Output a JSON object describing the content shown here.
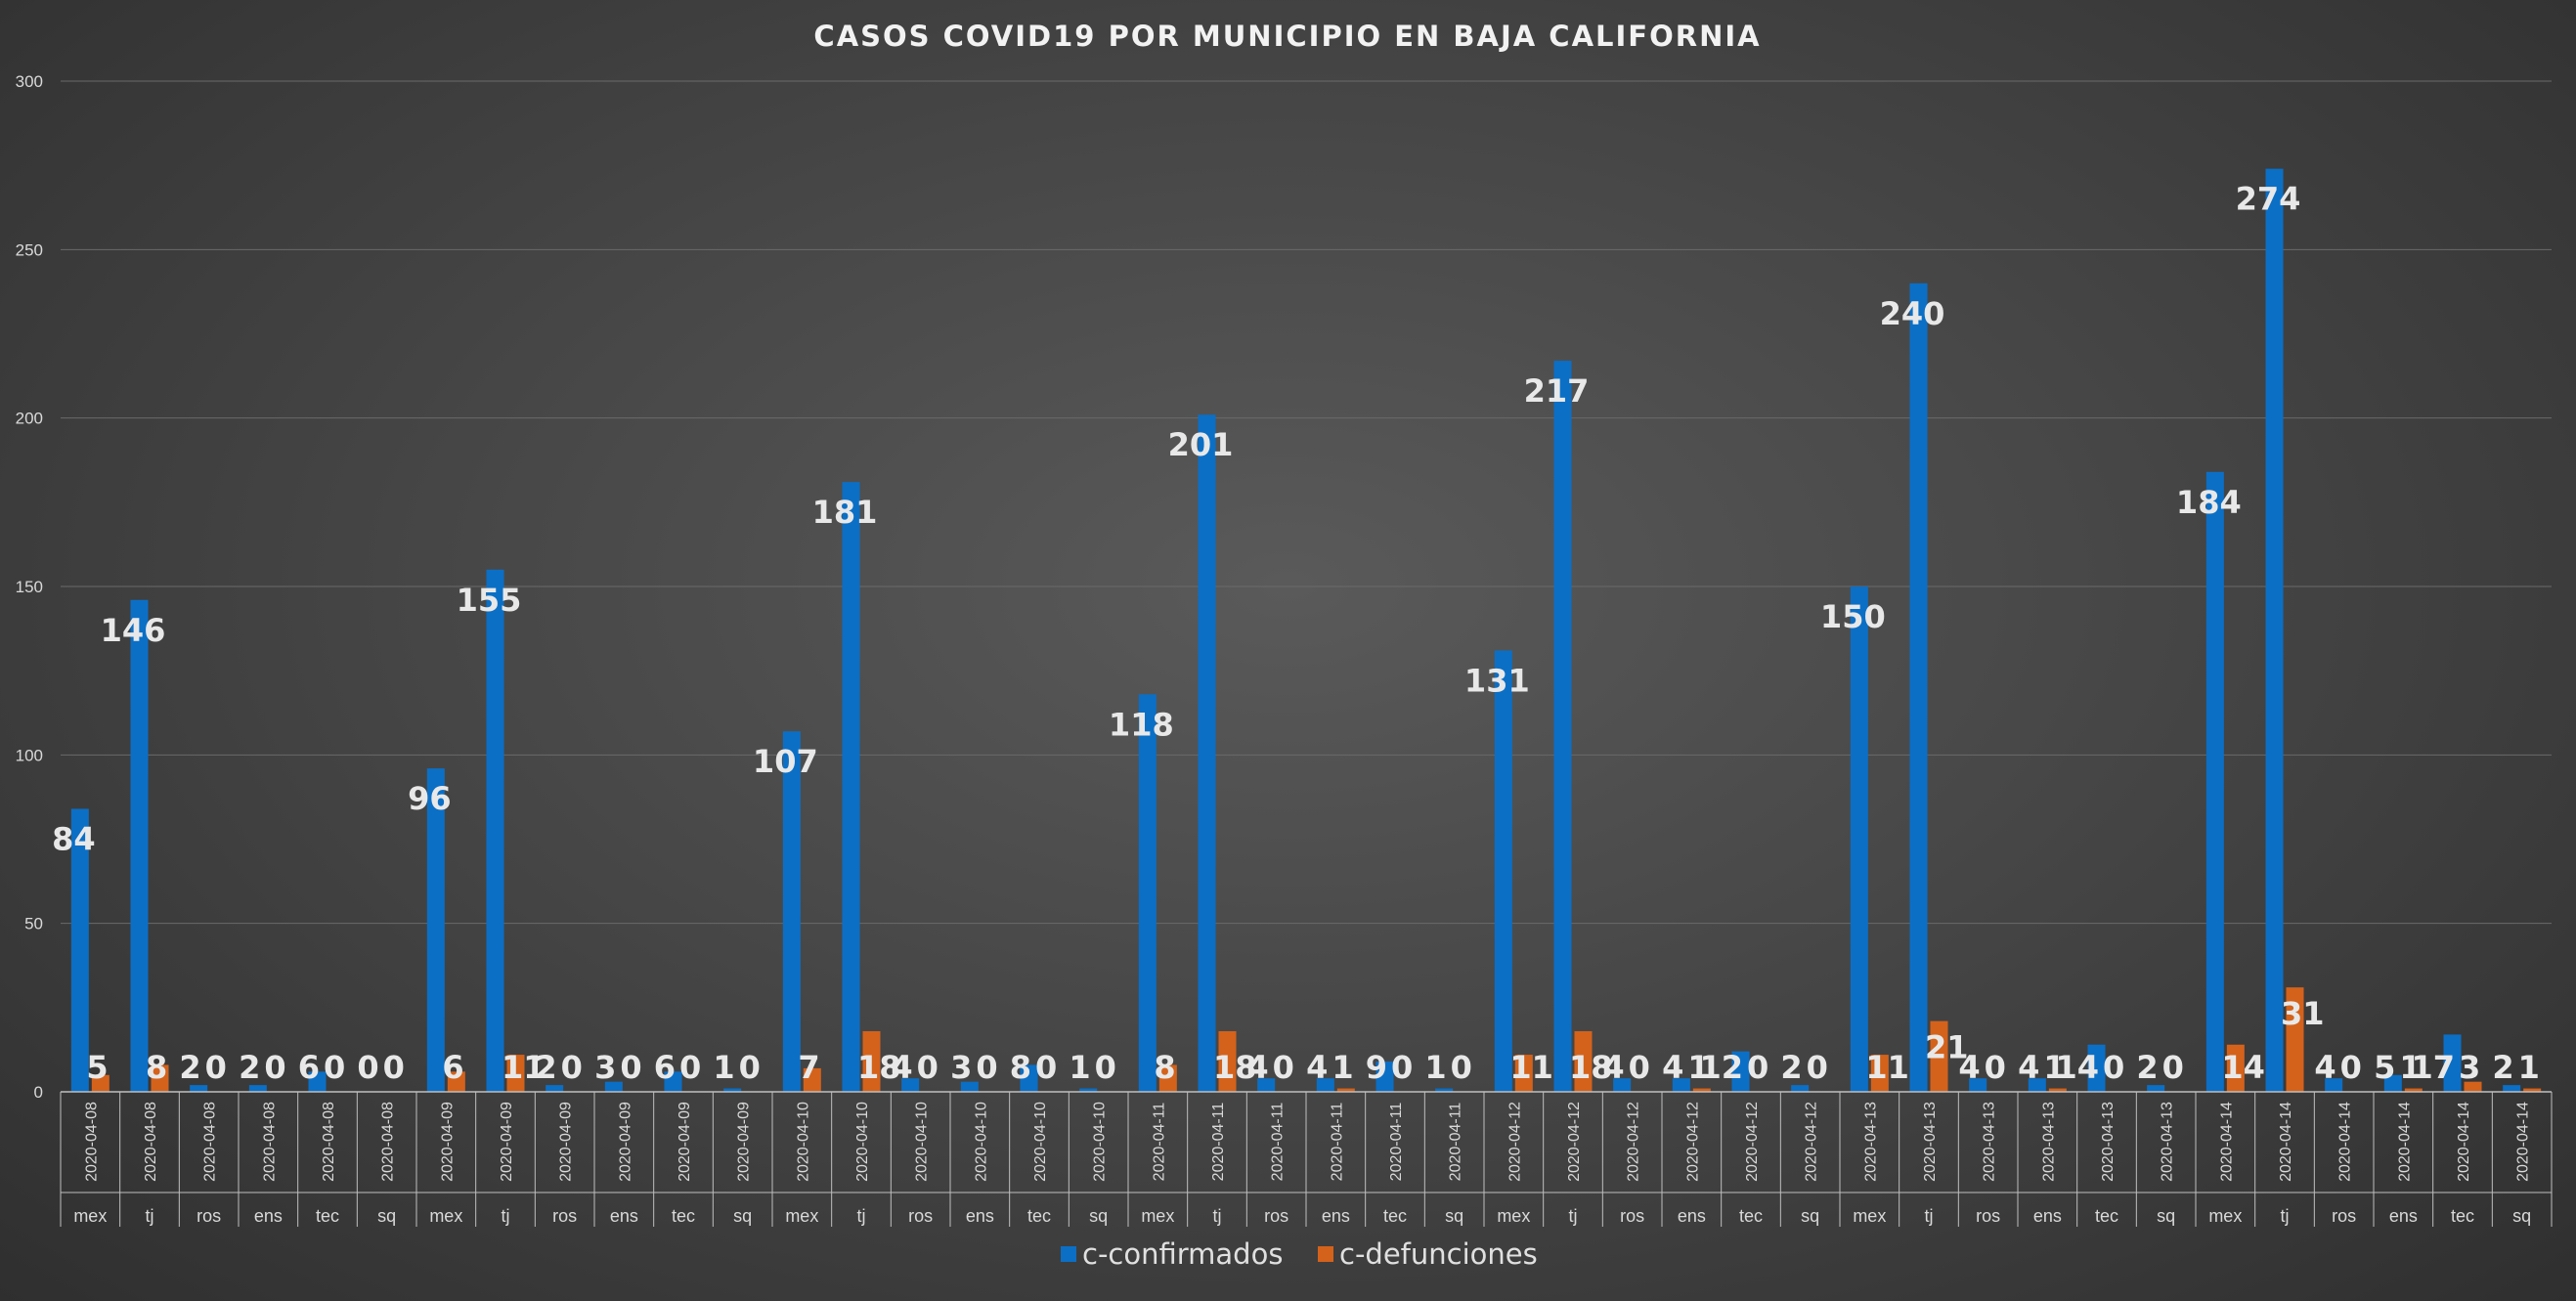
{
  "chart_data": {
    "type": "bar",
    "title": "CASOS COVID19 POR MUNICIPIO EN BAJA CALIFORNIA",
    "xlabel": "",
    "ylabel": "",
    "ylim": [
      0,
      300
    ],
    "yticks": [
      "0",
      "50",
      "100",
      "150",
      "200",
      "250",
      "300"
    ],
    "grid": true,
    "legend_position": "bottom",
    "categories": [
      {
        "date": "2020-04-08",
        "muni": "mex"
      },
      {
        "date": "2020-04-08",
        "muni": "tj"
      },
      {
        "date": "2020-04-08",
        "muni": "ros"
      },
      {
        "date": "2020-04-08",
        "muni": "ens"
      },
      {
        "date": "2020-04-08",
        "muni": "tec"
      },
      {
        "date": "2020-04-08",
        "muni": "sq"
      },
      {
        "date": "2020-04-09",
        "muni": "mex"
      },
      {
        "date": "2020-04-09",
        "muni": "tj"
      },
      {
        "date": "2020-04-09",
        "muni": "ros"
      },
      {
        "date": "2020-04-09",
        "muni": "ens"
      },
      {
        "date": "2020-04-09",
        "muni": "tec"
      },
      {
        "date": "2020-04-09",
        "muni": "sq"
      },
      {
        "date": "2020-04-10",
        "muni": "mex"
      },
      {
        "date": "2020-04-10",
        "muni": "tj"
      },
      {
        "date": "2020-04-10",
        "muni": "ros"
      },
      {
        "date": "2020-04-10",
        "muni": "ens"
      },
      {
        "date": "2020-04-10",
        "muni": "tec"
      },
      {
        "date": "2020-04-10",
        "muni": "sq"
      },
      {
        "date": "2020-04-11",
        "muni": "mex"
      },
      {
        "date": "2020-04-11",
        "muni": "tj"
      },
      {
        "date": "2020-04-11",
        "muni": "ros"
      },
      {
        "date": "2020-04-11",
        "muni": "ens"
      },
      {
        "date": "2020-04-11",
        "muni": "tec"
      },
      {
        "date": "2020-04-11",
        "muni": "sq"
      },
      {
        "date": "2020-04-12",
        "muni": "mex"
      },
      {
        "date": "2020-04-12",
        "muni": "tj"
      },
      {
        "date": "2020-04-12",
        "muni": "ros"
      },
      {
        "date": "2020-04-12",
        "muni": "ens"
      },
      {
        "date": "2020-04-12",
        "muni": "tec"
      },
      {
        "date": "2020-04-12",
        "muni": "sq"
      },
      {
        "date": "2020-04-13",
        "muni": "mex"
      },
      {
        "date": "2020-04-13",
        "muni": "tj"
      },
      {
        "date": "2020-04-13",
        "muni": "ros"
      },
      {
        "date": "2020-04-13",
        "muni": "ens"
      },
      {
        "date": "2020-04-13",
        "muni": "tec"
      },
      {
        "date": "2020-04-13",
        "muni": "sq"
      },
      {
        "date": "2020-04-14",
        "muni": "mex"
      },
      {
        "date": "2020-04-14",
        "muni": "tj"
      },
      {
        "date": "2020-04-14",
        "muni": "ros"
      },
      {
        "date": "2020-04-14",
        "muni": "ens"
      },
      {
        "date": "2020-04-14",
        "muni": "tec"
      },
      {
        "date": "2020-04-14",
        "muni": "sq"
      }
    ],
    "series": [
      {
        "name": "c-confirmados",
        "color": "#0b6fc6",
        "values": [
          84,
          146,
          2,
          2,
          6,
          0,
          96,
          155,
          2,
          3,
          6,
          1,
          107,
          181,
          4,
          3,
          8,
          1,
          118,
          201,
          4,
          4,
          9,
          1,
          131,
          217,
          4,
          4,
          12,
          2,
          150,
          240,
          4,
          4,
          14,
          2,
          184,
          274,
          4,
          5,
          17,
          2
        ]
      },
      {
        "name": "c-defunciones",
        "color": "#d4621b",
        "values": [
          5,
          8,
          0,
          0,
          0,
          0,
          6,
          11,
          0,
          0,
          0,
          0,
          7,
          18,
          0,
          0,
          0,
          0,
          8,
          18,
          0,
          1,
          0,
          0,
          11,
          18,
          0,
          1,
          0,
          0,
          11,
          21,
          0,
          1,
          0,
          0,
          14,
          31,
          0,
          1,
          3,
          1
        ]
      }
    ]
  }
}
